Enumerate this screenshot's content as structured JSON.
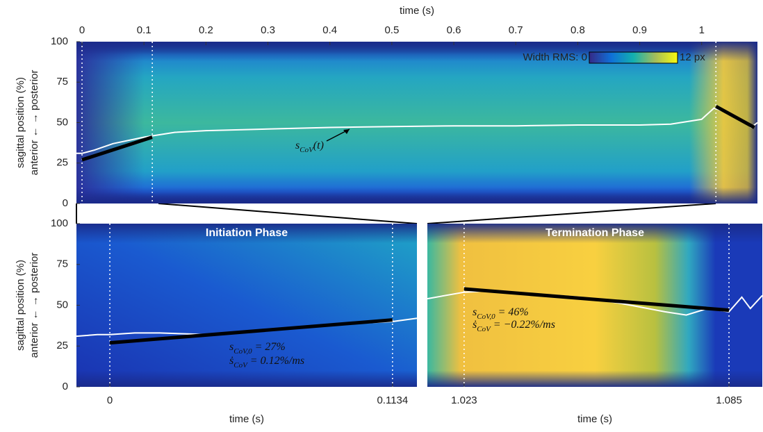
{
  "chart_data": [
    {
      "type": "line",
      "xlabel": "time (s)",
      "xaxis_position": "top",
      "ylabel": "sagittal position (%)",
      "ylabel2": "anterior ←    → posterior",
      "xlim": [
        -0.009,
        1.09
      ],
      "ylim": [
        0,
        100
      ],
      "xticks": [
        0,
        0.1,
        0.2,
        0.3,
        0.4,
        0.5,
        0.6,
        0.7,
        0.8,
        0.9,
        1
      ],
      "yticks": [
        0,
        25,
        50,
        75,
        100
      ],
      "vlines": [
        0,
        0.1134,
        1.023
      ],
      "colorbar": {
        "ticks": [
          {
            "value": 0,
            "label": "Width RMS: 0"
          },
          {
            "value": 12,
            "label": "12 px"
          }
        ]
      },
      "series": [
        {
          "color": "#ffffff",
          "x": [
            -0.009,
            0,
            0.02,
            0.05,
            0.1,
            0.15,
            0.2,
            0.3,
            0.4,
            0.5,
            0.6,
            0.7,
            0.8,
            0.9,
            0.95,
            1.0,
            1.02,
            1.05,
            1.07,
            1.08,
            1.09
          ],
          "values": [
            31,
            31,
            33,
            37,
            41,
            44,
            45,
            46,
            47,
            47.5,
            48,
            48,
            48.5,
            48.5,
            49,
            52,
            59,
            55,
            50,
            47,
            50
          ]
        },
        {
          "color": "#000000",
          "x": [
            0,
            0.1134
          ],
          "values": [
            27,
            41
          ]
        },
        {
          "color": "#000000",
          "x": [
            1.023,
            1.085
          ],
          "values": [
            60,
            47
          ]
        }
      ],
      "annotations": [
        {
          "s": "s",
          "sub": "CoV",
          "rest": "(t)"
        }
      ]
    },
    {
      "type": "line",
      "title": "Initiation Phase",
      "xlabel": "time (s)",
      "ylabel": "sagittal position (%)",
      "ylabel2": "anterior ←    → posterior",
      "xlim": [
        -0.0134,
        0.1232
      ],
      "ylim": [
        0,
        100
      ],
      "xticks": [
        0,
        0.1134
      ],
      "yticks": [
        0,
        25,
        50,
        75,
        100
      ],
      "vlines": [
        0,
        0.1134
      ],
      "series": [
        {
          "color": "#ffffff",
          "x": [
            -0.0134,
            -0.005,
            0,
            0.01,
            0.02,
            0.04,
            0.06,
            0.08,
            0.1,
            0.1134,
            0.1232
          ],
          "values": [
            31,
            32,
            32,
            33,
            33,
            32,
            34,
            37,
            39,
            40,
            42
          ]
        },
        {
          "color": "#000000",
          "x": [
            0,
            0.1134
          ],
          "values": [
            27,
            41
          ]
        }
      ],
      "annotations": [
        {
          "s": "s",
          "sub": "CoV,0",
          "rest": " = 27%"
        },
        {
          "s": "ṡ",
          "sub": "CoV",
          "rest": " = 0.12%/ms"
        }
      ]
    },
    {
      "type": "line",
      "title": "Termination Phase",
      "xlabel": "time (s)",
      "xlim": [
        1.0144,
        1.0928
      ],
      "ylim": [
        0,
        100
      ],
      "xticks": [
        1.023,
        1.085
      ],
      "vlines": [
        1.023,
        1.085
      ],
      "series": [
        {
          "color": "#ffffff",
          "x": [
            1.0144,
            1.023,
            1.03,
            1.04,
            1.05,
            1.06,
            1.07,
            1.075,
            1.08,
            1.085,
            1.088,
            1.09,
            1.0928
          ],
          "values": [
            54,
            58,
            59,
            57,
            55,
            51,
            46,
            44,
            48,
            46,
            55,
            48,
            56
          ]
        },
        {
          "color": "#000000",
          "x": [
            1.023,
            1.085
          ],
          "values": [
            60,
            47
          ]
        }
      ],
      "annotations": [
        {
          "s": "s",
          "sub": "CoV,0",
          "rest": " = 46%"
        },
        {
          "s": "ṡ",
          "sub": "CoV",
          "rest": " = −0.22%/ms"
        }
      ]
    }
  ]
}
